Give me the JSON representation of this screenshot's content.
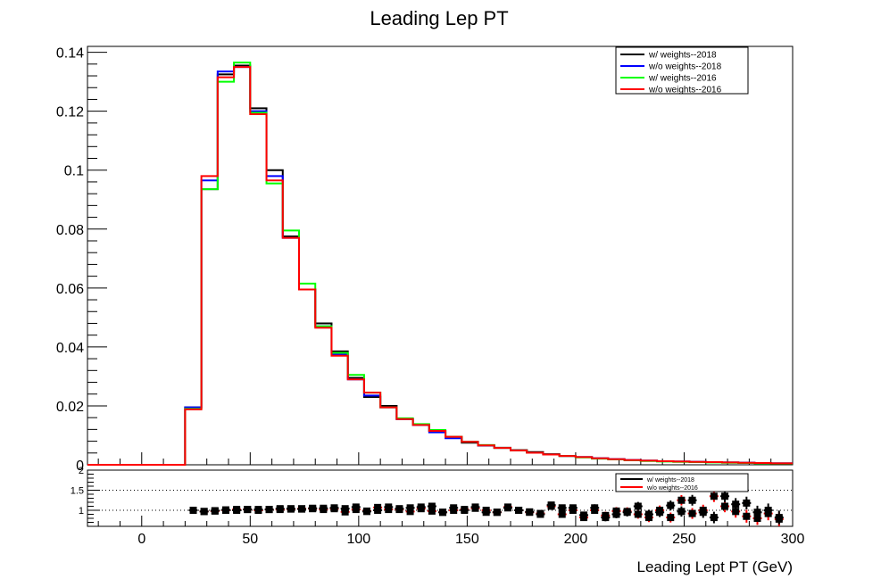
{
  "chart_data": [
    {
      "type": "line",
      "title": "Leading Lep PT",
      "xlabel": "",
      "ylabel": "",
      "xlim": [
        -25,
        300
      ],
      "ylim": [
        0,
        0.142
      ],
      "x_ticks": [
        "0",
        "50",
        "100",
        "150",
        "200",
        "250",
        "300"
      ],
      "y_ticks": [
        "0",
        "0.02",
        "0.04",
        "0.06",
        "0.08",
        "0.1",
        "0.12",
        "0.14"
      ],
      "bin_edges": [
        -25,
        20,
        27.5,
        35,
        42.5,
        50,
        57.5,
        65,
        72.5,
        80,
        87.5,
        95,
        102.5,
        110,
        117.5,
        125,
        132.5,
        140,
        147.5,
        155,
        162.5,
        170,
        177.5,
        185,
        192.5,
        200,
        207.5,
        215,
        222.5,
        230,
        237.5,
        245,
        252.5,
        260,
        267.5,
        275,
        282.5,
        290,
        300
      ],
      "legend_position": "top-right",
      "series": [
        {
          "name": "w/ weights--2018",
          "color": "#000000",
          "values": [
            0,
            0.0195,
            0.0935,
            0.1325,
            0.1355,
            0.121,
            0.1,
            0.0775,
            0.0595,
            0.048,
            0.0385,
            0.0295,
            0.023,
            0.02,
            0.0155,
            0.0135,
            0.0115,
            0.0095,
            0.0075,
            0.0065,
            0.0058,
            0.005,
            0.0043,
            0.0036,
            0.003,
            0.0026,
            0.0022,
            0.0019,
            0.0016,
            0.0014,
            0.0012,
            0.0011,
            0.001,
            0.0009,
            0.0008,
            0.0007,
            0.0006,
            0.0005
          ]
        },
        {
          "name": "w/o weights--2018",
          "color": "#0000ff",
          "values": [
            0,
            0.0195,
            0.0965,
            0.1335,
            0.135,
            0.12,
            0.098,
            0.077,
            0.0595,
            0.047,
            0.0375,
            0.029,
            0.0235,
            0.0195,
            0.0155,
            0.0135,
            0.011,
            0.009,
            0.0078,
            0.0066,
            0.0057,
            0.0049,
            0.0041,
            0.0035,
            0.003,
            0.0026,
            0.0022,
            0.0019,
            0.0016,
            0.0014,
            0.0012,
            0.0011,
            0.001,
            0.0009,
            0.0008,
            0.0007,
            0.0006,
            0.0005
          ]
        },
        {
          "name": "w/ weights--2016",
          "color": "#00ff00",
          "values": [
            0,
            0.019,
            0.0935,
            0.13,
            0.1365,
            0.1195,
            0.0955,
            0.0795,
            0.0615,
            0.047,
            0.038,
            0.0305,
            0.0245,
            0.0195,
            0.0158,
            0.0138,
            0.0118,
            0.0095,
            0.0078,
            0.0067,
            0.0057,
            0.0049,
            0.0041,
            0.0035,
            0.003,
            0.0025,
            0.0021,
            0.0018,
            0.0015,
            0.0013,
            0.0011,
            0.001,
            0.0009,
            0.0008,
            0.0007,
            0.0006,
            0.0005,
            0.0004
          ]
        },
        {
          "name": "w/o weights--2016",
          "color": "#ff0000",
          "values": [
            0,
            0.0188,
            0.098,
            0.1315,
            0.135,
            0.119,
            0.0965,
            0.077,
            0.0595,
            0.0465,
            0.037,
            0.029,
            0.0245,
            0.0195,
            0.0155,
            0.0135,
            0.0115,
            0.0095,
            0.0078,
            0.0066,
            0.0057,
            0.0049,
            0.0041,
            0.0035,
            0.003,
            0.0026,
            0.0022,
            0.0019,
            0.0016,
            0.0014,
            0.0012,
            0.0011,
            0.001,
            0.0009,
            0.0008,
            0.0007,
            0.0006,
            0.0005
          ]
        }
      ]
    },
    {
      "type": "scatter",
      "xlabel": "Leading Lept PT (GeV)",
      "ylabel": "",
      "xlim": [
        -25,
        300
      ],
      "ylim": [
        0.6,
        2
      ],
      "x_ticks": [
        "0",
        "50",
        "100",
        "150",
        "200",
        "250",
        "300"
      ],
      "y_ticks": [
        "1",
        "1.5",
        "2"
      ],
      "reference_lines": [
        1,
        1.5
      ],
      "legend_position": "top-right",
      "series": [
        {
          "name": "w/ weights--2018",
          "color": "#000000",
          "x": [
            23.75,
            28.75,
            33.75,
            38.75,
            43.75,
            48.75,
            53.75,
            58.75,
            63.75,
            68.75,
            73.75,
            78.75,
            83.75,
            88.75,
            93.75,
            98.75,
            103.75,
            108.75,
            113.75,
            118.75,
            123.75,
            128.75,
            133.75,
            138.75,
            143.75,
            148.75,
            153.75,
            158.75,
            163.75,
            168.75,
            173.75,
            178.75,
            183.75,
            188.75,
            193.75,
            198.75,
            203.75,
            208.75,
            213.75,
            218.75,
            223.75,
            228.75,
            233.75,
            238.75,
            243.75,
            248.75,
            253.75,
            258.75,
            263.75,
            268.75,
            273.75,
            278.75,
            283.75,
            288.75,
            293.75
          ],
          "values": [
            1.0,
            0.97,
            0.99,
            1.01,
            1.0,
            1.02,
            1.02,
            1.02,
            1.04,
            1.04,
            1.03,
            1.05,
            1.05,
            1.06,
            1.04,
            1.08,
            0.97,
            1.0,
            1.08,
            1.04,
            1.06,
            1.08,
            1.1,
            0.95,
            1.06,
            1.0,
            1.08,
            0.95,
            0.95,
            1.06,
            1.0,
            0.96,
            0.9,
            1.13,
            1.06,
            1.06,
            0.88,
            1.06,
            0.82,
            0.9,
            0.95,
            1.1,
            0.9,
            0.95,
            1.12,
            0.97,
            1.25,
            0.95,
            0.82,
            1.35,
            1.15,
            1.18,
            0.95,
            1.0,
            0.82
          ]
        },
        {
          "name": "w/o weights--2016",
          "color": "#ff0000",
          "x": [
            23.75,
            28.75,
            33.75,
            38.75,
            43.75,
            48.75,
            53.75,
            58.75,
            63.75,
            68.75,
            73.75,
            78.75,
            83.75,
            88.75,
            93.75,
            98.75,
            103.75,
            108.75,
            113.75,
            118.75,
            123.75,
            128.75,
            133.75,
            138.75,
            143.75,
            148.75,
            153.75,
            158.75,
            163.75,
            168.75,
            173.75,
            178.75,
            183.75,
            188.75,
            193.75,
            198.75,
            203.75,
            208.75,
            213.75,
            218.75,
            223.75,
            228.75,
            233.75,
            238.75,
            243.75,
            248.75,
            253.75,
            258.75,
            263.75,
            268.75,
            273.75,
            278.75,
            283.75,
            288.75,
            293.75
          ],
          "values": [
            1.0,
            0.97,
            0.98,
            1.0,
            1.02,
            1.02,
            1.0,
            1.02,
            1.02,
            1.03,
            1.04,
            1.04,
            1.02,
            1.04,
            0.96,
            1.02,
            0.98,
            1.07,
            1.02,
            1.02,
            0.97,
            1.04,
            0.98,
            0.95,
            1.0,
            1.02,
            1.05,
            1.0,
            0.95,
            1.08,
            1.0,
            0.95,
            0.92,
            1.1,
            0.9,
            1.0,
            0.82,
            1.0,
            0.87,
            0.98,
            0.97,
            0.9,
            0.82,
            1.0,
            0.82,
            1.25,
            0.92,
            1.0,
            1.35,
            1.1,
            0.97,
            0.85,
            0.8,
            0.92,
            0.78
          ]
        }
      ]
    }
  ]
}
